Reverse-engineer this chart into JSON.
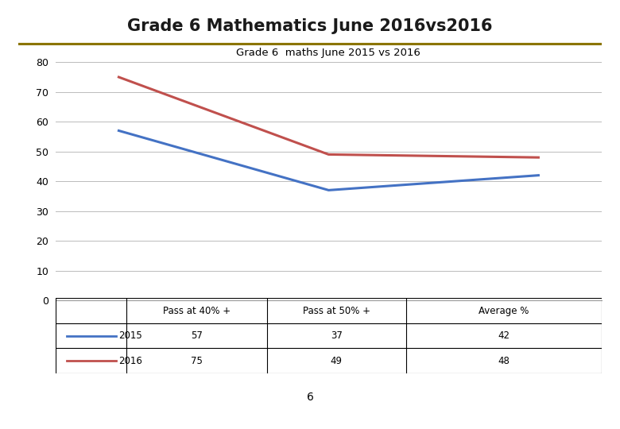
{
  "title_banner": "Grade 6 Mathematics June 2016vs2016",
  "subtitle": "Grade 6  maths June 2015 vs 2016",
  "banner_color": "#F5C518",
  "banner_border_color": "#8B7500",
  "banner_text_color": "#1a1a1a",
  "categories": [
    "Pass at 40% +",
    "Pass at 50% +",
    "Average %"
  ],
  "series": [
    {
      "label": "2015",
      "values": [
        57,
        37,
        42
      ],
      "color": "#4472C4"
    },
    {
      "label": "2016",
      "values": [
        75,
        49,
        48
      ],
      "color": "#C0504D"
    }
  ],
  "ylim": [
    0,
    80
  ],
  "yticks": [
    0,
    10,
    20,
    30,
    40,
    50,
    60,
    70,
    80
  ],
  "page_number": "6",
  "grid_color": "#bbbbbb",
  "background_color": "#ffffff",
  "table_header_row": [
    "",
    "Pass at 40% +",
    "Pass at 50% +",
    "Average %"
  ],
  "table_rows": [
    [
      57,
      37,
      42
    ],
    [
      75,
      49,
      48
    ]
  ]
}
